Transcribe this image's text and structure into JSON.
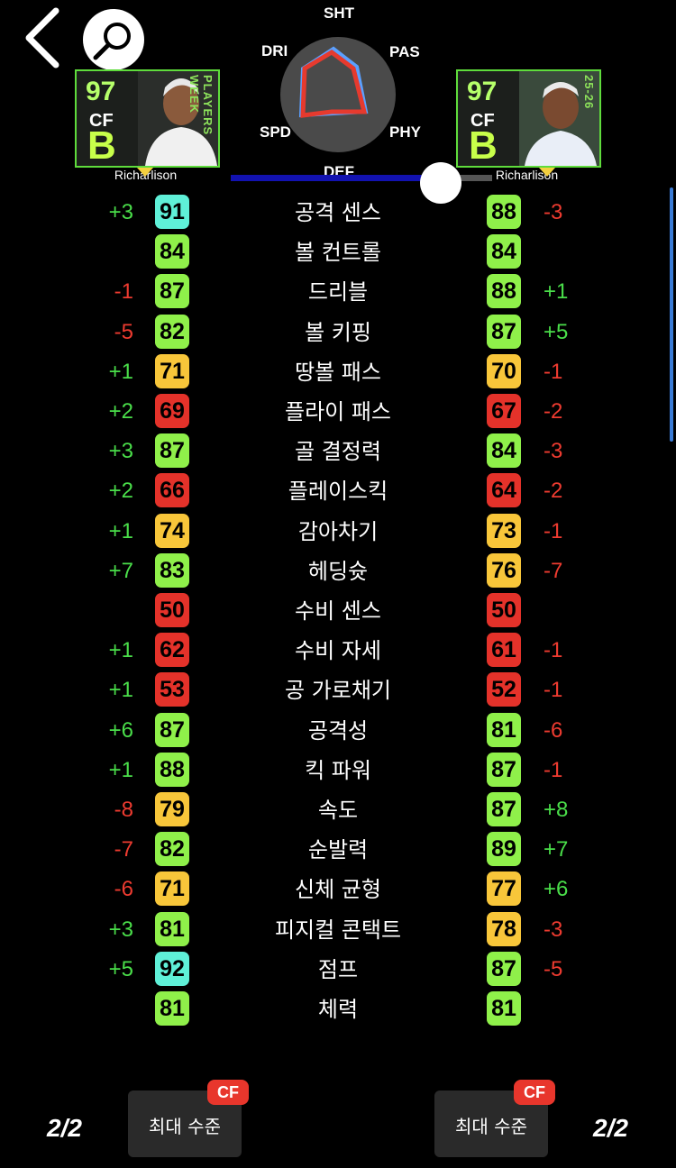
{
  "nav": {
    "back_icon": "chevron-left-icon",
    "search_icon": "magnifier-icon"
  },
  "left_player": {
    "rating": "97",
    "position": "CF",
    "grade": "B",
    "name": "Richarlison",
    "card_text": "PLAYERS WEEK"
  },
  "right_player": {
    "rating": "97",
    "position": "CF",
    "grade": "B",
    "name": "Richarlison",
    "card_text": "25-26"
  },
  "radar": {
    "labels": {
      "top": "SHT",
      "top_left": "DRI",
      "top_right": "PAS",
      "bottom_left": "SPD",
      "bottom_right": "PHY",
      "bottom": "DEF"
    }
  },
  "colors": {
    "aqua": "#5ff0d8",
    "green": "#8ff04a",
    "yellow": "#f8c63a",
    "red": "#e4322a",
    "plus": "#4ade4a",
    "minus": "#ee3b30"
  },
  "stats": [
    {
      "label": "공격 센스",
      "left": "91",
      "right": "88",
      "lc": "aqua",
      "rc": "green",
      "ld": "+3",
      "rd": "-3"
    },
    {
      "label": "볼 컨트롤",
      "left": "84",
      "right": "84",
      "lc": "green",
      "rc": "green",
      "ld": "",
      "rd": ""
    },
    {
      "label": "드리블",
      "left": "87",
      "right": "88",
      "lc": "green",
      "rc": "green",
      "ld": "-1",
      "rd": "+1"
    },
    {
      "label": "볼 키핑",
      "left": "82",
      "right": "87",
      "lc": "green",
      "rc": "green",
      "ld": "-5",
      "rd": "+5"
    },
    {
      "label": "땅볼 패스",
      "left": "71",
      "right": "70",
      "lc": "yellow",
      "rc": "yellow",
      "ld": "+1",
      "rd": "-1"
    },
    {
      "label": "플라이 패스",
      "left": "69",
      "right": "67",
      "lc": "red",
      "rc": "red",
      "ld": "+2",
      "rd": "-2"
    },
    {
      "label": "골 결정력",
      "left": "87",
      "right": "84",
      "lc": "green",
      "rc": "green",
      "ld": "+3",
      "rd": "-3"
    },
    {
      "label": "플레이스킥",
      "left": "66",
      "right": "64",
      "lc": "red",
      "rc": "red",
      "ld": "+2",
      "rd": "-2"
    },
    {
      "label": "감아차기",
      "left": "74",
      "right": "73",
      "lc": "yellow",
      "rc": "yellow",
      "ld": "+1",
      "rd": "-1"
    },
    {
      "label": "헤딩슛",
      "left": "83",
      "right": "76",
      "lc": "green",
      "rc": "yellow",
      "ld": "+7",
      "rd": "-7"
    },
    {
      "label": "수비 센스",
      "left": "50",
      "right": "50",
      "lc": "red",
      "rc": "red",
      "ld": "",
      "rd": ""
    },
    {
      "label": "수비 자세",
      "left": "62",
      "right": "61",
      "lc": "red",
      "rc": "red",
      "ld": "+1",
      "rd": "-1"
    },
    {
      "label": "공 가로채기",
      "left": "53",
      "right": "52",
      "lc": "red",
      "rc": "red",
      "ld": "+1",
      "rd": "-1"
    },
    {
      "label": "공격성",
      "left": "87",
      "right": "81",
      "lc": "green",
      "rc": "green",
      "ld": "+6",
      "rd": "-6"
    },
    {
      "label": "킥 파워",
      "left": "88",
      "right": "87",
      "lc": "green",
      "rc": "green",
      "ld": "+1",
      "rd": "-1"
    },
    {
      "label": "속도",
      "left": "79",
      "right": "87",
      "lc": "yellow",
      "rc": "green",
      "ld": "-8",
      "rd": "+8"
    },
    {
      "label": "순발력",
      "left": "82",
      "right": "89",
      "lc": "green",
      "rc": "green",
      "ld": "-7",
      "rd": "+7"
    },
    {
      "label": "신체 균형",
      "left": "71",
      "right": "77",
      "lc": "yellow",
      "rc": "yellow",
      "ld": "-6",
      "rd": "+6"
    },
    {
      "label": "피지컬 콘택트",
      "left": "81",
      "right": "78",
      "lc": "green",
      "rc": "yellow",
      "ld": "+3",
      "rd": "-3"
    },
    {
      "label": "점프",
      "left": "92",
      "right": "87",
      "lc": "aqua",
      "rc": "green",
      "ld": "+5",
      "rd": "-5"
    },
    {
      "label": "체력",
      "left": "81",
      "right": "81",
      "lc": "green",
      "rc": "green",
      "ld": "",
      "rd": ""
    }
  ],
  "footer": {
    "left_page": "2/2",
    "right_page": "2/2",
    "left_button": "최대 수준",
    "right_button": "최대 수준",
    "left_tag": "CF",
    "right_tag": "CF"
  }
}
